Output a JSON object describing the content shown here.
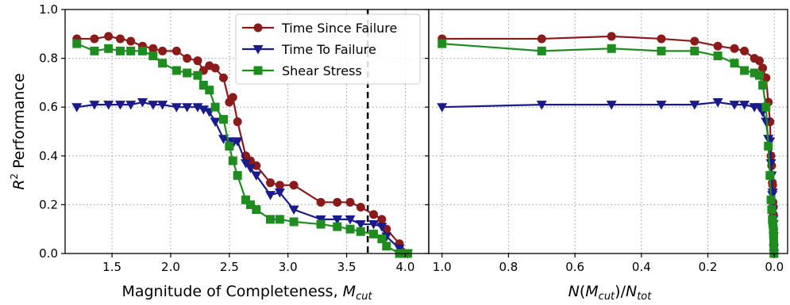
{
  "colors": {
    "time_since_failure": "#8b1a1a",
    "time_to_failure": "#1a1a8b",
    "shear_stress": "#1e8c1e",
    "grid": "#9a9a9a",
    "mc_line": "#000000"
  },
  "chart_data": [
    {
      "type": "line",
      "panel": "left",
      "xlabel": "Magnitude of Completeness, M_cut",
      "ylabel": "R^2 Performance",
      "xlim": [
        1.1,
        4.2
      ],
      "ylim": [
        0.0,
        1.0
      ],
      "xticks": [
        "1.5",
        "2.0",
        "2.5",
        "3.0",
        "3.5",
        "4.0"
      ],
      "xtick_values": [
        1.5,
        2.0,
        2.5,
        3.0,
        3.5,
        4.0
      ],
      "yticks": [
        "0.0",
        "0.2",
        "0.4",
        "0.6",
        "0.8",
        "1.0"
      ],
      "ytick_values": [
        0.0,
        0.2,
        0.4,
        0.6,
        0.8,
        1.0
      ],
      "grid": true,
      "legend_position": "top-right",
      "vline_x": 3.68,
      "series": [
        {
          "name": "Time Since Failure",
          "marker": "circle",
          "color_key": "time_since_failure",
          "x": [
            1.2,
            1.35,
            1.47,
            1.57,
            1.66,
            1.76,
            1.85,
            1.93,
            2.05,
            2.14,
            2.23,
            2.28,
            2.33,
            2.38,
            2.45,
            2.5,
            2.53,
            2.57,
            2.64,
            2.68,
            2.73,
            2.85,
            2.93,
            3.05,
            3.28,
            3.42,
            3.53,
            3.62,
            3.73,
            3.8,
            3.84,
            3.95,
            4.02
          ],
          "y": [
            0.88,
            0.88,
            0.89,
            0.88,
            0.87,
            0.85,
            0.84,
            0.83,
            0.83,
            0.8,
            0.79,
            0.75,
            0.77,
            0.76,
            0.72,
            0.62,
            0.64,
            0.54,
            0.4,
            0.38,
            0.36,
            0.29,
            0.28,
            0.28,
            0.21,
            0.21,
            0.21,
            0.19,
            0.16,
            0.14,
            0.1,
            0.04,
            0.0
          ]
        },
        {
          "name": "Time To Failure",
          "marker": "triangle-down",
          "color_key": "time_to_failure",
          "x": [
            1.2,
            1.35,
            1.47,
            1.57,
            1.66,
            1.76,
            1.85,
            1.93,
            2.05,
            2.14,
            2.23,
            2.28,
            2.33,
            2.38,
            2.45,
            2.5,
            2.53,
            2.57,
            2.64,
            2.68,
            2.73,
            2.85,
            2.93,
            3.05,
            3.28,
            3.42,
            3.53,
            3.62,
            3.73,
            3.8,
            3.84,
            3.95,
            4.02
          ],
          "y": [
            0.6,
            0.61,
            0.61,
            0.61,
            0.61,
            0.62,
            0.61,
            0.61,
            0.6,
            0.6,
            0.6,
            0.59,
            0.58,
            0.54,
            0.47,
            0.46,
            0.45,
            0.46,
            0.37,
            0.35,
            0.32,
            0.24,
            0.25,
            0.18,
            0.14,
            0.14,
            0.14,
            0.12,
            0.12,
            0.11,
            0.07,
            0.02,
            0.0
          ]
        },
        {
          "name": "Shear Stress",
          "marker": "square",
          "color_key": "shear_stress",
          "x": [
            1.2,
            1.35,
            1.47,
            1.57,
            1.66,
            1.76,
            1.85,
            1.93,
            2.05,
            2.14,
            2.23,
            2.28,
            2.33,
            2.38,
            2.45,
            2.5,
            2.53,
            2.57,
            2.64,
            2.68,
            2.73,
            2.85,
            2.93,
            3.05,
            3.28,
            3.42,
            3.53,
            3.62,
            3.73,
            3.8,
            3.84,
            3.95,
            4.02
          ],
          "y": [
            0.86,
            0.83,
            0.84,
            0.83,
            0.83,
            0.83,
            0.81,
            0.78,
            0.75,
            0.74,
            0.73,
            0.69,
            0.67,
            0.6,
            0.55,
            0.44,
            0.38,
            0.32,
            0.22,
            0.2,
            0.18,
            0.14,
            0.14,
            0.13,
            0.12,
            0.11,
            0.1,
            0.09,
            0.08,
            0.06,
            0.03,
            0.0,
            0.0
          ]
        }
      ]
    },
    {
      "type": "line",
      "panel": "right",
      "xlabel": "N(M_cut)/N_tot",
      "ylabel": "",
      "xlim": [
        1.04,
        -0.04
      ],
      "ylim": [
        0.0,
        1.0
      ],
      "xticks": [
        "1.0",
        "0.8",
        "0.6",
        "0.4",
        "0.2",
        "0.0"
      ],
      "xtick_values": [
        1.0,
        0.8,
        0.6,
        0.4,
        0.2,
        0.0
      ],
      "grid": true,
      "series": [
        {
          "name": "Time Since Failure",
          "marker": "circle",
          "color_key": "time_since_failure",
          "x": [
            1.0,
            0.7,
            0.49,
            0.34,
            0.24,
            0.17,
            0.12,
            0.09,
            0.06,
            0.045,
            0.035,
            0.025,
            0.018,
            0.013,
            0.01,
            0.008,
            0.006,
            0.005,
            0.004,
            0.003,
            0.0025,
            0.002,
            0.0015,
            0.001
          ],
          "y": [
            0.88,
            0.88,
            0.89,
            0.88,
            0.87,
            0.85,
            0.84,
            0.83,
            0.8,
            0.79,
            0.76,
            0.72,
            0.62,
            0.54,
            0.4,
            0.36,
            0.29,
            0.28,
            0.21,
            0.19,
            0.16,
            0.1,
            0.04,
            0.0
          ]
        },
        {
          "name": "Time To Failure",
          "marker": "triangle-down",
          "color_key": "time_to_failure",
          "x": [
            1.0,
            0.7,
            0.49,
            0.34,
            0.24,
            0.17,
            0.12,
            0.09,
            0.06,
            0.045,
            0.035,
            0.025,
            0.018,
            0.013,
            0.01,
            0.008,
            0.006,
            0.005,
            0.004,
            0.003,
            0.0025,
            0.002,
            0.0015,
            0.001
          ],
          "y": [
            0.6,
            0.61,
            0.61,
            0.61,
            0.61,
            0.62,
            0.61,
            0.61,
            0.6,
            0.6,
            0.58,
            0.54,
            0.47,
            0.46,
            0.37,
            0.32,
            0.24,
            0.25,
            0.18,
            0.14,
            0.12,
            0.07,
            0.02,
            0.0
          ]
        },
        {
          "name": "Shear Stress",
          "marker": "square",
          "color_key": "shear_stress",
          "x": [
            1.0,
            0.7,
            0.49,
            0.34,
            0.24,
            0.17,
            0.12,
            0.09,
            0.06,
            0.045,
            0.035,
            0.025,
            0.018,
            0.013,
            0.01,
            0.008,
            0.006,
            0.005,
            0.004,
            0.003,
            0.0025,
            0.002,
            0.0015,
            0.001
          ],
          "y": [
            0.86,
            0.83,
            0.84,
            0.83,
            0.83,
            0.81,
            0.78,
            0.75,
            0.74,
            0.73,
            0.69,
            0.6,
            0.44,
            0.32,
            0.22,
            0.18,
            0.14,
            0.13,
            0.12,
            0.1,
            0.08,
            0.06,
            0.03,
            0.0
          ]
        }
      ]
    }
  ]
}
